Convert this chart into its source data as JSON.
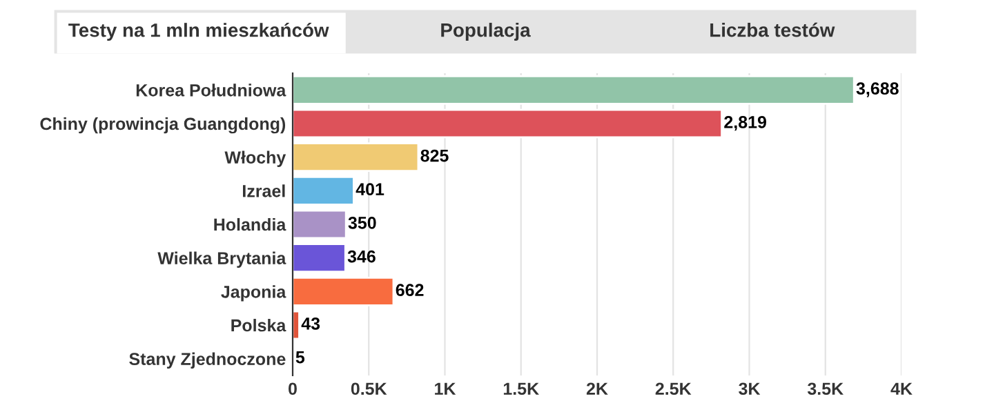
{
  "chart_data": {
    "type": "bar",
    "orientation": "horizontal",
    "title": "Testy na 1 mln mieszkańców",
    "annotations": [
      "Populacja",
      "Liczba testów"
    ],
    "categories": [
      "Korea Południowa",
      "Chiny (prowincja Guangdong)",
      "Włochy",
      "Izrael",
      "Holandia",
      "Wielka Brytania",
      "Japonia",
      "Polska",
      "Stany Zjednoczone"
    ],
    "values": [
      3688,
      2819,
      825,
      401,
      350,
      346,
      662,
      43,
      5
    ],
    "colors": [
      "#91c4a8",
      "#dd525a",
      "#f0ca73",
      "#62b6e3",
      "#a992c6",
      "#6a55d8",
      "#f86c3f",
      "#e0543a",
      "#555555"
    ],
    "value_labels": [
      "3,688",
      "2,819",
      "825",
      "401",
      "350",
      "346",
      "662",
      "43",
      "5"
    ],
    "xlim": [
      0,
      4000
    ],
    "xticks": [
      0,
      {
        "value": 500,
        "label": "0.5K"
      },
      {
        "value": 1000,
        "label": "1K"
      },
      {
        "value": 1500,
        "label": "1.5K"
      },
      {
        "value": 2000,
        "label": "2K"
      },
      {
        "value": 2500,
        "label": "2.5K"
      },
      {
        "value": 3000,
        "label": "3K"
      },
      {
        "value": 3500,
        "label": "3.5K"
      },
      {
        "value": 4000,
        "label": "4K"
      }
    ],
    "grid": "x"
  }
}
